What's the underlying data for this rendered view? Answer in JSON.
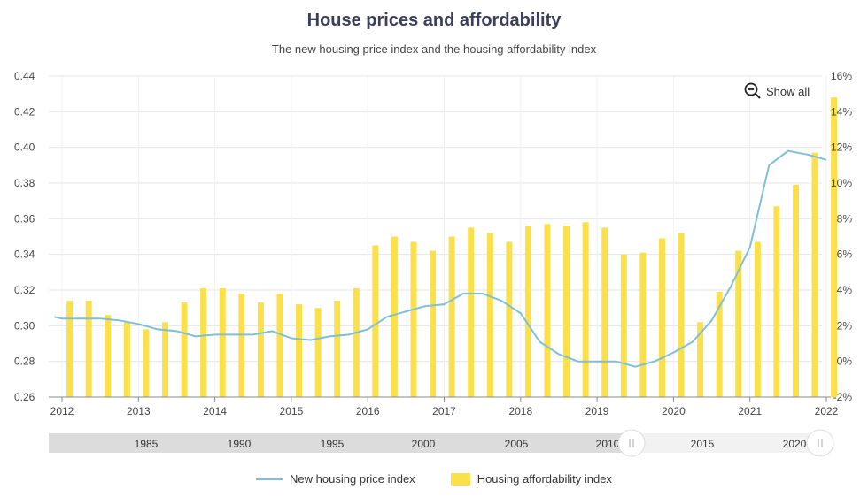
{
  "header": {
    "title": "House prices and affordability",
    "subtitle": "The new housing price index and the housing affordability index"
  },
  "controls": {
    "show_all_label": "Show all"
  },
  "colors": {
    "line": "#7fc0d8",
    "bar": "#fbe04b",
    "grid": "#e6e6e6",
    "navigator_bg": "#dcdcdc"
  },
  "legend": {
    "line_label": "New housing price index",
    "bar_label": "Housing affordability index"
  },
  "navigator": {
    "year_labels": [
      "1985",
      "1990",
      "1995",
      "2000",
      "2005",
      "2010",
      "2015",
      "2020"
    ]
  },
  "chart_data": {
    "type": "bar+line",
    "x_tick_labels": [
      "2012",
      "2013",
      "2014",
      "2015",
      "2016",
      "2017",
      "2018",
      "2019",
      "2020",
      "2021",
      "2022"
    ],
    "x_range": [
      2012.0,
      2022.0
    ],
    "left_axis": {
      "ylim": [
        0.26,
        0.44
      ],
      "ticks": [
        "0.26",
        "0.28",
        "0.30",
        "0.32",
        "0.34",
        "0.36",
        "0.38",
        "0.40",
        "0.42",
        "0.44"
      ]
    },
    "right_axis": {
      "ylim": [
        -2,
        16
      ],
      "ticks": [
        "-2%",
        "0%",
        "2%",
        "4%",
        "6%",
        "8%",
        "10%",
        "12%",
        "14%",
        "16%"
      ]
    },
    "grid": true,
    "legend_position": "bottom",
    "series": [
      {
        "name": "New housing price index",
        "type": "line",
        "axis": "left",
        "x": [
          2011.9,
          2012.0,
          2012.25,
          2012.5,
          2012.75,
          2013.0,
          2013.25,
          2013.5,
          2013.75,
          2014.0,
          2014.25,
          2014.5,
          2014.75,
          2015.0,
          2015.25,
          2015.5,
          2015.75,
          2016.0,
          2016.25,
          2016.5,
          2016.75,
          2017.0,
          2017.25,
          2017.5,
          2017.75,
          2018.0,
          2018.25,
          2018.5,
          2018.75,
          2019.0,
          2019.25,
          2019.5,
          2019.75,
          2020.0,
          2020.25,
          2020.5,
          2020.75,
          2021.0,
          2021.25,
          2021.5,
          2021.75,
          2022.0
        ],
        "y": [
          0.305,
          0.304,
          0.304,
          0.304,
          0.303,
          0.301,
          0.298,
          0.297,
          0.294,
          0.295,
          0.295,
          0.295,
          0.297,
          0.293,
          0.292,
          0.294,
          0.295,
          0.298,
          0.305,
          0.308,
          0.311,
          0.312,
          0.318,
          0.318,
          0.314,
          0.307,
          0.291,
          0.284,
          0.28,
          0.28,
          0.28,
          0.277,
          0.28,
          0.285,
          0.291,
          0.303,
          0.322,
          0.344,
          0.39,
          0.398,
          0.396,
          0.393
        ]
      },
      {
        "name": "Housing affordability index",
        "type": "bar",
        "axis": "right",
        "x": [
          2012.1,
          2012.35,
          2012.6,
          2012.85,
          2013.1,
          2013.35,
          2013.6,
          2013.85,
          2014.1,
          2014.35,
          2014.6,
          2014.85,
          2015.1,
          2015.35,
          2015.6,
          2015.85,
          2016.1,
          2016.35,
          2016.6,
          2016.85,
          2017.1,
          2017.35,
          2017.6,
          2017.85,
          2018.1,
          2018.35,
          2018.6,
          2018.85,
          2019.1,
          2019.35,
          2019.6,
          2019.85,
          2020.1,
          2020.35,
          2020.6,
          2020.85,
          2021.1,
          2021.35,
          2021.6,
          2021.85,
          2022.1
        ],
        "values": [
          3.4,
          3.4,
          2.6,
          2.2,
          1.8,
          2.2,
          3.3,
          4.1,
          4.1,
          3.8,
          3.3,
          3.8,
          3.2,
          3.0,
          3.4,
          4.1,
          6.5,
          7.0,
          6.7,
          6.2,
          7.0,
          7.5,
          7.2,
          6.7,
          7.6,
          7.7,
          7.6,
          7.8,
          7.5,
          6.0,
          6.1,
          6.9,
          7.2,
          2.2,
          3.9,
          6.2,
          6.7,
          8.7,
          9.9,
          11.7,
          14.8
        ]
      }
    ]
  }
}
